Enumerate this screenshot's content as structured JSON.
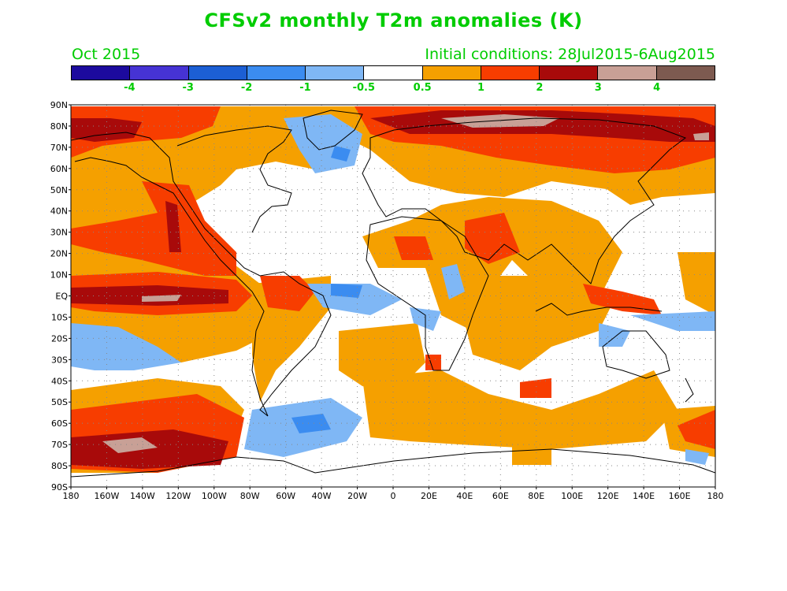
{
  "title": "CFSv2 monthly T2m anomalies (K)",
  "valid_month": "Oct 2015",
  "initial_conditions": "Initial conditions: 28Jul2015-6Aug2015",
  "colorbar": {
    "colors": [
      "#1c0a9e",
      "#4633d4",
      "#1c5fd4",
      "#3b8cf0",
      "#7fb7f5",
      "#ffffff",
      "#f5a000",
      "#f73d00",
      "#a80a0a",
      "#c8a096",
      "#7d5a50"
    ],
    "labels": [
      "-4",
      "-3",
      "-2",
      "-1",
      "-0.5",
      "0.5",
      "1",
      "2",
      "3",
      "4"
    ]
  },
  "map": {
    "lat_labels": [
      "90N",
      "80N",
      "70N",
      "60N",
      "50N",
      "40N",
      "30N",
      "20N",
      "10N",
      "EQ",
      "10S",
      "20S",
      "30S",
      "40S",
      "50S",
      "60S",
      "70S",
      "80S",
      "90S"
    ],
    "lon_labels": [
      "180",
      "160W",
      "140W",
      "120W",
      "100W",
      "80W",
      "60W",
      "40W",
      "20W",
      "0",
      "20E",
      "40E",
      "60E",
      "80E",
      "100E",
      "120E",
      "140E",
      "160E",
      "180"
    ]
  }
}
